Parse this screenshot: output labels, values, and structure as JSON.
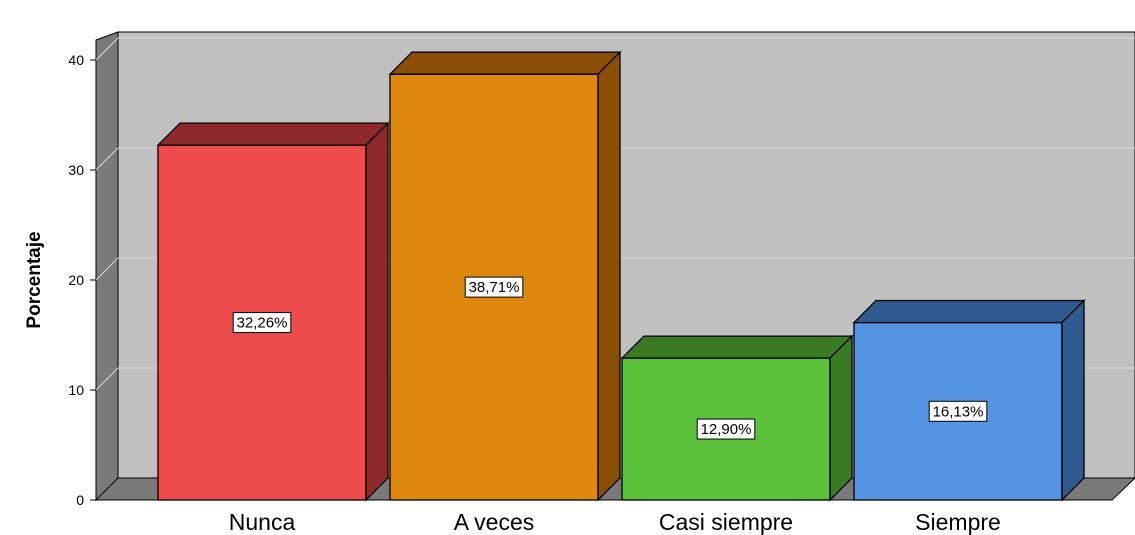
{
  "chart_data": {
    "type": "bar",
    "style": "3d",
    "categories": [
      "Nunca",
      "A veces",
      "Casi siempre",
      "Siempre"
    ],
    "values": [
      32.26,
      38.71,
      12.9,
      16.13
    ],
    "data_labels": [
      "32,26%",
      "38,71%",
      "12,90%",
      "16,13%"
    ],
    "colors": [
      "#ee4b4c",
      "#df8810",
      "#5dc23b",
      "#5494e2"
    ],
    "side_colors": [
      "#8e2a2b",
      "#8a4e04",
      "#3a7a22",
      "#2f5a90"
    ],
    "title": "",
    "xlabel": "",
    "ylabel": "Porcentaje",
    "ylim": [
      0,
      40
    ],
    "yticks": [
      "0",
      "10",
      "20",
      "30",
      "40"
    ],
    "grid": true,
    "plot_background": "#c0c0c0",
    "wall_color": "#7a7a7a"
  }
}
